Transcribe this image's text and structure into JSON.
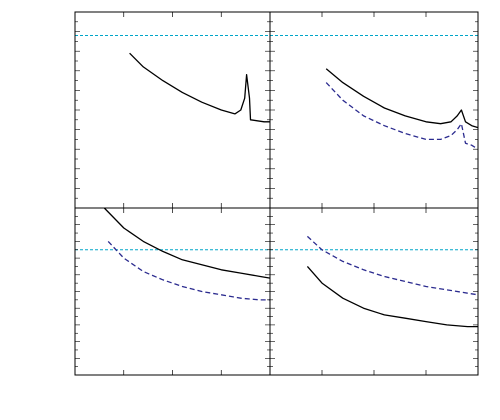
{
  "colors": {
    "frame": "#000000",
    "solid_series": "#000000",
    "dashed_series": "#2b2b8f",
    "reference_line": "#00a5c8"
  },
  "chart_data": [
    {
      "type": "line",
      "panel": "top-left",
      "title": "",
      "xlabel": "",
      "ylabel": "",
      "xlim": [
        0,
        1
      ],
      "ylim": [
        0,
        1
      ],
      "grid": false,
      "series": [
        {
          "style": "solid",
          "color": "#000000",
          "x": [
            0.28,
            0.35,
            0.45,
            0.55,
            0.65,
            0.75,
            0.82,
            0.85,
            0.87,
            0.88,
            0.895,
            0.9,
            0.97,
            1.0
          ],
          "y": [
            0.79,
            0.72,
            0.65,
            0.59,
            0.54,
            0.5,
            0.48,
            0.5,
            0.56,
            0.68,
            0.56,
            0.45,
            0.44,
            0.44
          ]
        }
      ],
      "reference_lines": [
        {
          "orientation": "horizontal",
          "y": 0.88,
          "style": "dashed",
          "color": "#00a5c8"
        }
      ]
    },
    {
      "type": "line",
      "panel": "top-right",
      "title": "",
      "xlabel": "",
      "ylabel": "",
      "xlim": [
        0,
        1
      ],
      "ylim": [
        0,
        1
      ],
      "grid": false,
      "series": [
        {
          "style": "solid",
          "color": "#000000",
          "x": [
            0.27,
            0.35,
            0.45,
            0.55,
            0.65,
            0.75,
            0.82,
            0.87,
            0.9,
            0.92,
            0.94,
            0.97,
            1.0
          ],
          "y": [
            0.71,
            0.64,
            0.57,
            0.51,
            0.47,
            0.44,
            0.43,
            0.44,
            0.47,
            0.5,
            0.44,
            0.42,
            0.41
          ]
        },
        {
          "style": "dashed",
          "color": "#2b2b8f",
          "x": [
            0.27,
            0.35,
            0.45,
            0.55,
            0.65,
            0.75,
            0.82,
            0.87,
            0.9,
            0.92,
            0.94,
            0.97,
            1.0
          ],
          "y": [
            0.64,
            0.55,
            0.47,
            0.42,
            0.38,
            0.35,
            0.35,
            0.37,
            0.4,
            0.43,
            0.33,
            0.32,
            0.3
          ]
        }
      ],
      "reference_lines": [
        {
          "orientation": "horizontal",
          "y": 0.88,
          "style": "dashed",
          "color": "#00a5c8"
        }
      ]
    },
    {
      "type": "line",
      "panel": "bottom-left",
      "title": "",
      "xlabel": "",
      "ylabel": "",
      "xlim": [
        0,
        1
      ],
      "ylim": [
        0,
        1
      ],
      "grid": false,
      "series": [
        {
          "style": "solid",
          "color": "#000000",
          "x": [
            0.15,
            0.25,
            0.35,
            0.45,
            0.55,
            0.65,
            0.75,
            0.85,
            0.95,
            1.0
          ],
          "y": [
            1.0,
            0.88,
            0.8,
            0.74,
            0.69,
            0.66,
            0.63,
            0.61,
            0.59,
            0.58
          ]
        },
        {
          "style": "dashed",
          "color": "#2b2b8f",
          "x": [
            0.17,
            0.25,
            0.35,
            0.45,
            0.55,
            0.65,
            0.75,
            0.85,
            0.95,
            1.0
          ],
          "y": [
            0.8,
            0.7,
            0.62,
            0.57,
            0.53,
            0.5,
            0.48,
            0.46,
            0.45,
            0.45
          ]
        }
      ],
      "reference_lines": [
        {
          "orientation": "horizontal",
          "y": 0.75,
          "style": "dashed",
          "color": "#00a5c8"
        }
      ]
    },
    {
      "type": "line",
      "panel": "bottom-right",
      "title": "",
      "xlabel": "",
      "ylabel": "",
      "xlim": [
        0,
        1
      ],
      "ylim": [
        0,
        1
      ],
      "grid": false,
      "series": [
        {
          "style": "solid",
          "color": "#000000",
          "x": [
            0.18,
            0.25,
            0.35,
            0.45,
            0.55,
            0.65,
            0.75,
            0.85,
            0.95,
            1.0
          ],
          "y": [
            0.65,
            0.55,
            0.46,
            0.4,
            0.36,
            0.34,
            0.32,
            0.3,
            0.29,
            0.29
          ]
        },
        {
          "style": "dashed",
          "color": "#2b2b8f",
          "x": [
            0.18,
            0.25,
            0.35,
            0.45,
            0.55,
            0.65,
            0.75,
            0.85,
            0.95,
            1.0
          ],
          "y": [
            0.83,
            0.75,
            0.68,
            0.63,
            0.59,
            0.56,
            0.53,
            0.51,
            0.49,
            0.48
          ]
        }
      ],
      "reference_lines": [
        {
          "orientation": "horizontal",
          "y": 0.75,
          "style": "dashed",
          "color": "#00a5c8"
        }
      ]
    }
  ]
}
